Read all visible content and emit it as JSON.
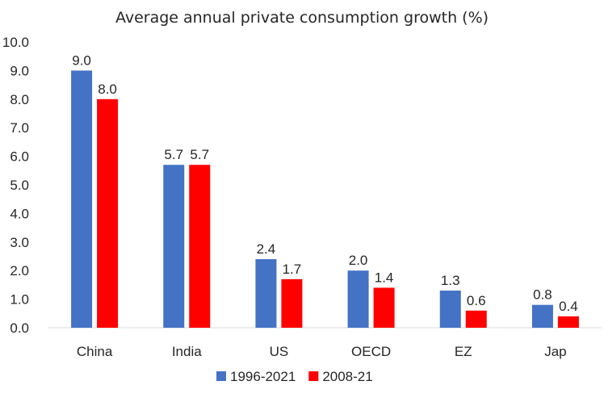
{
  "chart_data": {
    "type": "bar",
    "title": "Average annual private consumption growth (%)",
    "categories": [
      "China",
      "India",
      "US",
      "OECD",
      "EZ",
      "Jap"
    ],
    "series": [
      {
        "name": "1996-2021",
        "color": "#4472C4",
        "values": [
          9.0,
          5.7,
          2.4,
          2.0,
          1.3,
          0.8
        ]
      },
      {
        "name": "2008-21",
        "color": "#FF0000",
        "values": [
          8.0,
          5.7,
          1.7,
          1.4,
          0.6,
          0.4
        ]
      }
    ],
    "ylim": [
      0,
      10
    ],
    "ytick_labels": [
      "0.0",
      "1.0",
      "2.0",
      "3.0",
      "4.0",
      "5.0",
      "6.0",
      "7.0",
      "8.0",
      "9.0",
      "10.0"
    ],
    "grid": false,
    "legend_position": "bottom"
  }
}
